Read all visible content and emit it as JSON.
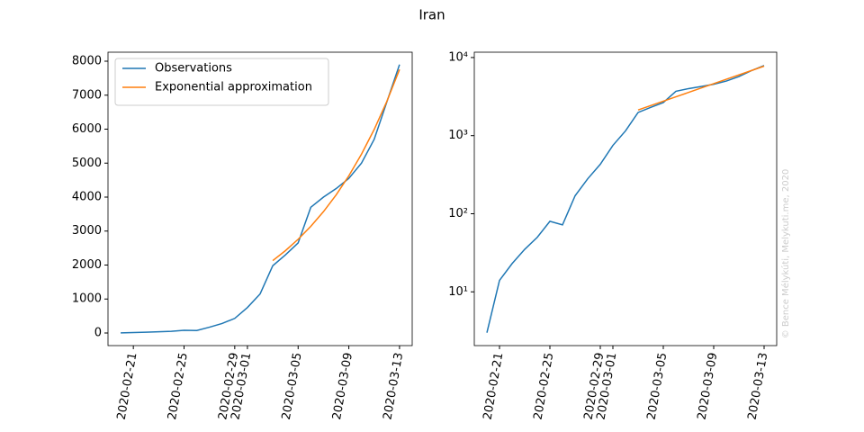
{
  "title": "Iran",
  "watermark": "© Bence Mélykúti, Melykuti.me, 2020",
  "chart_data": [
    {
      "type": "line",
      "yscale": "linear",
      "legend": "upper left",
      "xlim": [
        "2020-02-19",
        "2020-03-14"
      ],
      "xticks": [
        "2020-02-21",
        "2020-02-25",
        "2020-02-29",
        "2020-03-01",
        "2020-03-05",
        "2020-03-09",
        "2020-03-13"
      ],
      "ylim": [
        -371,
        8265
      ],
      "yticks": [
        0,
        1000,
        2000,
        3000,
        4000,
        5000,
        6000,
        7000,
        8000
      ],
      "series": [
        {
          "name": "Observations",
          "color": "#1f77b4",
          "x": [
            "2020-02-20",
            "2020-02-21",
            "2020-02-22",
            "2020-02-23",
            "2020-02-24",
            "2020-02-25",
            "2020-02-26",
            "2020-02-27",
            "2020-02-28",
            "2020-02-29",
            "2020-03-01",
            "2020-03-02",
            "2020-03-03",
            "2020-03-04",
            "2020-03-05",
            "2020-03-06",
            "2020-03-07",
            "2020-03-08",
            "2020-03-09",
            "2020-03-10",
            "2020-03-11",
            "2020-03-12",
            "2020-03-13"
          ],
          "values": [
            3,
            14,
            23,
            35,
            50,
            80,
            72,
            170,
            280,
            430,
            750,
            1150,
            1980,
            2300,
            2650,
            3700,
            4000,
            4250,
            4550,
            5000,
            5700,
            6800,
            7900
          ]
        },
        {
          "name": "Exponential approximation",
          "color": "#ff7f0e",
          "x": [
            "2020-03-03",
            "2020-03-04",
            "2020-03-05",
            "2020-03-06",
            "2020-03-07",
            "2020-03-08",
            "2020-03-09",
            "2020-03-10",
            "2020-03-11",
            "2020-03-12",
            "2020-03-13"
          ],
          "values": [
            2130,
            2424,
            2758,
            3139,
            3572,
            4065,
            4626,
            5264,
            5990,
            6817,
            7757
          ]
        }
      ]
    },
    {
      "type": "line",
      "yscale": "log",
      "legend": false,
      "xlim": [
        "2020-02-19",
        "2020-03-14"
      ],
      "xticks": [
        "2020-02-21",
        "2020-02-25",
        "2020-02-29",
        "2020-03-01",
        "2020-03-05",
        "2020-03-09",
        "2020-03-13"
      ],
      "ylim": [
        2.05,
        11700
      ],
      "yticks": [
        {
          "value": 10,
          "label": "10¹"
        },
        {
          "value": 100,
          "label": "10²"
        },
        {
          "value": 1000,
          "label": "10³"
        },
        {
          "value": 10000,
          "label": "10⁴"
        }
      ],
      "series": [
        {
          "name": "Observations",
          "color": "#1f77b4",
          "x": [
            "2020-02-20",
            "2020-02-21",
            "2020-02-22",
            "2020-02-23",
            "2020-02-24",
            "2020-02-25",
            "2020-02-26",
            "2020-02-27",
            "2020-02-28",
            "2020-02-29",
            "2020-03-01",
            "2020-03-02",
            "2020-03-03",
            "2020-03-04",
            "2020-03-05",
            "2020-03-06",
            "2020-03-07",
            "2020-03-08",
            "2020-03-09",
            "2020-03-10",
            "2020-03-11",
            "2020-03-12",
            "2020-03-13"
          ],
          "values": [
            3,
            14,
            23,
            35,
            50,
            80,
            72,
            170,
            280,
            430,
            750,
            1150,
            1980,
            2300,
            2650,
            3700,
            4000,
            4250,
            4550,
            5000,
            5700,
            6800,
            7900
          ]
        },
        {
          "name": "Exponential approximation",
          "color": "#ff7f0e",
          "x": [
            "2020-03-03",
            "2020-03-04",
            "2020-03-05",
            "2020-03-06",
            "2020-03-07",
            "2020-03-08",
            "2020-03-09",
            "2020-03-10",
            "2020-03-11",
            "2020-03-12",
            "2020-03-13"
          ],
          "values": [
            2130,
            2424,
            2758,
            3139,
            3572,
            4065,
            4626,
            5264,
            5990,
            6817,
            7757
          ]
        }
      ]
    }
  ]
}
